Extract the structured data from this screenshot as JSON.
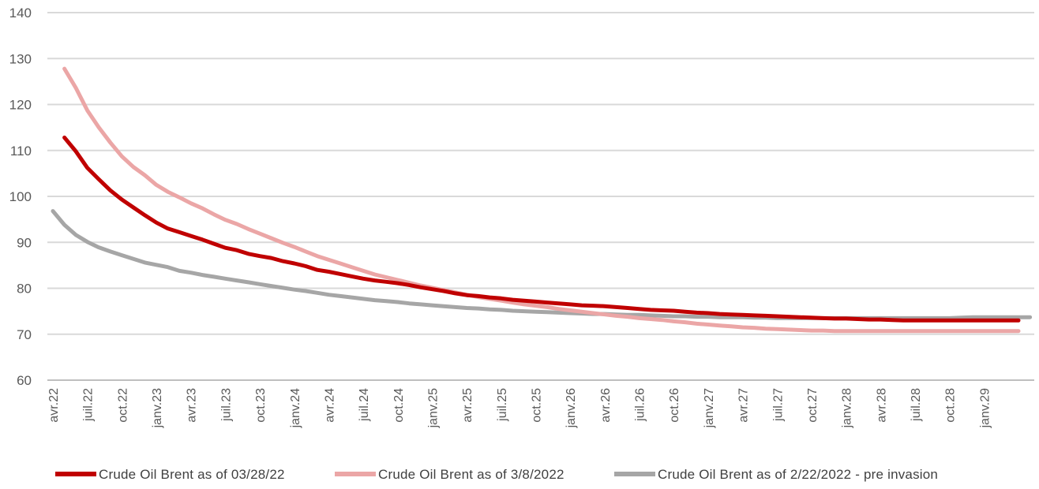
{
  "chart_data": {
    "type": "line",
    "title": "",
    "xlabel": "",
    "ylabel": "",
    "ylim": [
      60,
      140
    ],
    "y_ticks": [
      60,
      70,
      80,
      90,
      100,
      110,
      120,
      130,
      140
    ],
    "x_tick_labels": [
      "avr.22",
      "juil.22",
      "oct.22",
      "janv.23",
      "avr.23",
      "juil.23",
      "oct.23",
      "janv.24",
      "avr.24",
      "juil.24",
      "oct.24",
      "janv.25",
      "avr.25",
      "juil.25",
      "oct.25",
      "janv.26",
      "avr.26",
      "juil.26",
      "oct.26",
      "janv.27",
      "avr.27",
      "juil.27",
      "oct.27",
      "janv.28",
      "avr.28",
      "juil.28",
      "oct.28",
      "janv.29"
    ],
    "x_months_start": "2022-04",
    "grid": "horizontal",
    "legend_position": "bottom",
    "series": [
      {
        "name": "Crude Oil Brent as of 03/28/22",
        "color": "#c00000",
        "start_month": "2022-05",
        "values": [
          112.8,
          109.8,
          106.2,
          103.7,
          101.3,
          99.3,
          97.6,
          95.9,
          94.3,
          93.0,
          92.2,
          91.4,
          90.6,
          89.7,
          88.8,
          88.3,
          87.5,
          87.0,
          86.6,
          85.9,
          85.4,
          84.8,
          84.0,
          83.6,
          83.1,
          82.6,
          82.1,
          81.7,
          81.4,
          81.1,
          80.7,
          80.2,
          79.8,
          79.4,
          78.9,
          78.5,
          78.3,
          78.0,
          77.8,
          77.5,
          77.3,
          77.1,
          76.9,
          76.7,
          76.5,
          76.3,
          76.2,
          76.1,
          75.9,
          75.7,
          75.5,
          75.3,
          75.2,
          75.1,
          74.9,
          74.7,
          74.6,
          74.4,
          74.3,
          74.2,
          74.1,
          74.0,
          73.9,
          73.8,
          73.7,
          73.6,
          73.5,
          73.4,
          73.4,
          73.3,
          73.2,
          73.2,
          73.1,
          73.0,
          73.0,
          73.0,
          73.0,
          73.0,
          73.0,
          73.0,
          73.0,
          73.0,
          73.0,
          73.0
        ]
      },
      {
        "name": "Crude Oil Brent as of 3/8/2022",
        "color": "#eba6a6",
        "start_month": "2022-05",
        "values": [
          127.8,
          123.6,
          118.7,
          115.0,
          111.7,
          108.7,
          106.4,
          104.6,
          102.5,
          101.0,
          99.8,
          98.5,
          97.4,
          96.1,
          94.9,
          94.0,
          92.9,
          91.9,
          90.9,
          89.9,
          89.0,
          88.0,
          87.0,
          86.2,
          85.4,
          84.6,
          83.8,
          83.0,
          82.4,
          81.8,
          81.2,
          80.6,
          80.1,
          79.6,
          79.1,
          78.6,
          78.1,
          77.7,
          77.3,
          76.9,
          76.5,
          76.2,
          75.9,
          75.5,
          75.2,
          74.9,
          74.6,
          74.3,
          74.0,
          73.8,
          73.5,
          73.3,
          73.1,
          72.8,
          72.6,
          72.3,
          72.1,
          71.9,
          71.7,
          71.5,
          71.4,
          71.2,
          71.1,
          71.0,
          70.9,
          70.8,
          70.8,
          70.7,
          70.7,
          70.7,
          70.7,
          70.7,
          70.7,
          70.7,
          70.7,
          70.7,
          70.7,
          70.7,
          70.7,
          70.7,
          70.7,
          70.7,
          70.7,
          70.7
        ]
      },
      {
        "name": "Crude Oil Brent as of 2/22/2022 - pre invasion",
        "color": "#a6a6a6",
        "start_month": "2022-04",
        "values": [
          96.8,
          93.8,
          91.6,
          90.1,
          88.9,
          88.0,
          87.2,
          86.4,
          85.6,
          85.1,
          84.6,
          83.8,
          83.4,
          82.9,
          82.5,
          82.1,
          81.7,
          81.3,
          80.9,
          80.5,
          80.1,
          79.7,
          79.4,
          79.0,
          78.6,
          78.3,
          78.0,
          77.7,
          77.4,
          77.2,
          77.0,
          76.7,
          76.5,
          76.3,
          76.1,
          75.9,
          75.7,
          75.6,
          75.4,
          75.3,
          75.1,
          75.0,
          74.9,
          74.8,
          74.7,
          74.6,
          74.5,
          74.4,
          74.4,
          74.3,
          74.2,
          74.2,
          74.1,
          74.0,
          73.9,
          73.9,
          73.8,
          73.8,
          73.7,
          73.7,
          73.7,
          73.6,
          73.6,
          73.5,
          73.5,
          73.5,
          73.5,
          73.5,
          73.5,
          73.5,
          73.5,
          73.5,
          73.5,
          73.5,
          73.5,
          73.5,
          73.5,
          73.5,
          73.5,
          73.6,
          73.7,
          73.7,
          73.7,
          73.7,
          73.7,
          73.7
        ]
      }
    ]
  }
}
